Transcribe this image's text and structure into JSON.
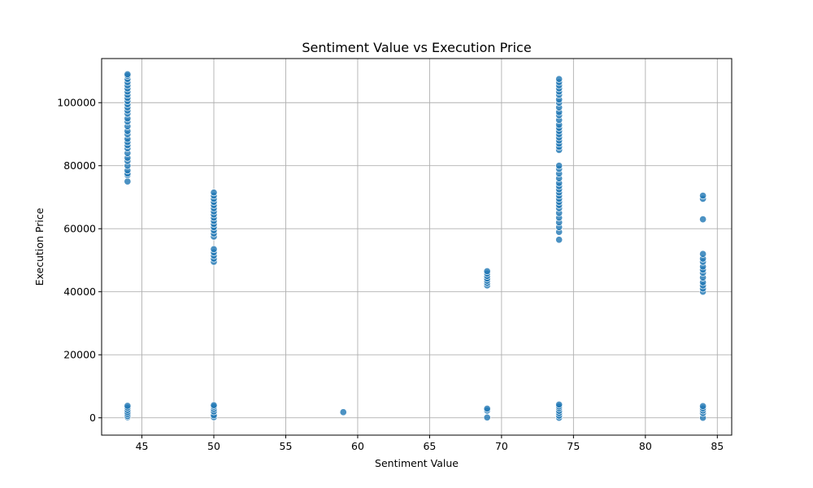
{
  "chart_data": {
    "type": "scatter",
    "title": "Sentiment Value vs Execution Price",
    "xlabel": "Sentiment Value",
    "ylabel": "Execution Price",
    "xlim": [
      42.2,
      86.0
    ],
    "ylim": [
      -5500,
      114000
    ],
    "xticks": [
      45,
      50,
      55,
      60,
      65,
      70,
      75,
      80,
      85
    ],
    "yticks": [
      0,
      20000,
      40000,
      60000,
      80000,
      100000
    ],
    "grid": true,
    "marker_color": "#1f77b4",
    "series": [
      {
        "points": [
          [
            44,
            75000
          ],
          [
            44,
            77000
          ],
          [
            44,
            77500
          ],
          [
            44,
            78500
          ],
          [
            44,
            80000
          ],
          [
            44,
            81500
          ],
          [
            44,
            82500
          ],
          [
            44,
            84000
          ],
          [
            44,
            85500
          ],
          [
            44,
            86500
          ],
          [
            44,
            87500
          ],
          [
            44,
            88500
          ],
          [
            44,
            90000
          ],
          [
            44,
            91000
          ],
          [
            44,
            92500
          ],
          [
            44,
            94000
          ],
          [
            44,
            95000
          ],
          [
            44,
            96500
          ],
          [
            44,
            97500
          ],
          [
            44,
            98500
          ],
          [
            44,
            99500
          ],
          [
            44,
            100500
          ],
          [
            44,
            101500
          ],
          [
            44,
            102500
          ],
          [
            44,
            103500
          ],
          [
            44,
            104500
          ],
          [
            44,
            105500
          ],
          [
            44,
            106500
          ],
          [
            44,
            107500
          ],
          [
            44,
            108500
          ],
          [
            44,
            109000
          ],
          [
            44,
            200
          ],
          [
            44,
            600
          ],
          [
            44,
            1200
          ],
          [
            44,
            1800
          ],
          [
            44,
            2500
          ],
          [
            44,
            3200
          ],
          [
            44,
            3800
          ],
          [
            50,
            49500
          ],
          [
            50,
            50500
          ],
          [
            50,
            51500
          ],
          [
            50,
            52500
          ],
          [
            50,
            53500
          ],
          [
            50,
            57500
          ],
          [
            50,
            58500
          ],
          [
            50,
            59500
          ],
          [
            50,
            60500
          ],
          [
            50,
            61500
          ],
          [
            50,
            62500
          ],
          [
            50,
            63500
          ],
          [
            50,
            64500
          ],
          [
            50,
            65500
          ],
          [
            50,
            66500
          ],
          [
            50,
            67500
          ],
          [
            50,
            68500
          ],
          [
            50,
            69500
          ],
          [
            50,
            70500
          ],
          [
            50,
            71500
          ],
          [
            50,
            200
          ],
          [
            50,
            800
          ],
          [
            50,
            2000
          ],
          [
            50,
            2800
          ],
          [
            50,
            3500
          ],
          [
            50,
            4000
          ],
          [
            59,
            1800
          ],
          [
            69,
            42000
          ],
          [
            69,
            42800
          ],
          [
            69,
            43500
          ],
          [
            69,
            44200
          ],
          [
            69,
            45000
          ],
          [
            69,
            45800
          ],
          [
            69,
            46500
          ],
          [
            69,
            100
          ],
          [
            69,
            2300
          ],
          [
            69,
            2900
          ],
          [
            74,
            56500
          ],
          [
            74,
            59000
          ],
          [
            74,
            60500
          ],
          [
            74,
            62000
          ],
          [
            74,
            63500
          ],
          [
            74,
            65000
          ],
          [
            74,
            66500
          ],
          [
            74,
            67500
          ],
          [
            74,
            68500
          ],
          [
            74,
            69500
          ],
          [
            74,
            70500
          ],
          [
            74,
            71500
          ],
          [
            74,
            72500
          ],
          [
            74,
            73500
          ],
          [
            74,
            74500
          ],
          [
            74,
            76000
          ],
          [
            74,
            77500
          ],
          [
            74,
            79000
          ],
          [
            74,
            80000
          ],
          [
            74,
            85000
          ],
          [
            74,
            86000
          ],
          [
            74,
            87000
          ],
          [
            74,
            88000
          ],
          [
            74,
            89000
          ],
          [
            74,
            90000
          ],
          [
            74,
            91000
          ],
          [
            74,
            92000
          ],
          [
            74,
            93000
          ],
          [
            74,
            94500
          ],
          [
            74,
            96000
          ],
          [
            74,
            97000
          ],
          [
            74,
            98500
          ],
          [
            74,
            100000
          ],
          [
            74,
            101000
          ],
          [
            74,
            102500
          ],
          [
            74,
            103500
          ],
          [
            74,
            104500
          ],
          [
            74,
            105500
          ],
          [
            74,
            106500
          ],
          [
            74,
            107500
          ],
          [
            74,
            0
          ],
          [
            74,
            700
          ],
          [
            74,
            1500
          ],
          [
            74,
            2200
          ],
          [
            74,
            3000
          ],
          [
            74,
            3600
          ],
          [
            74,
            4200
          ],
          [
            84,
            40000
          ],
          [
            84,
            41000
          ],
          [
            84,
            42000
          ],
          [
            84,
            43000
          ],
          [
            84,
            44500
          ],
          [
            84,
            46000
          ],
          [
            84,
            47000
          ],
          [
            84,
            48000
          ],
          [
            84,
            49500
          ],
          [
            84,
            50500
          ],
          [
            84,
            52000
          ],
          [
            84,
            63000
          ],
          [
            84,
            69500
          ],
          [
            84,
            70500
          ],
          [
            84,
            0
          ],
          [
            84,
            1500
          ],
          [
            84,
            2300
          ],
          [
            84,
            3000
          ],
          [
            84,
            3700
          ]
        ]
      }
    ]
  }
}
